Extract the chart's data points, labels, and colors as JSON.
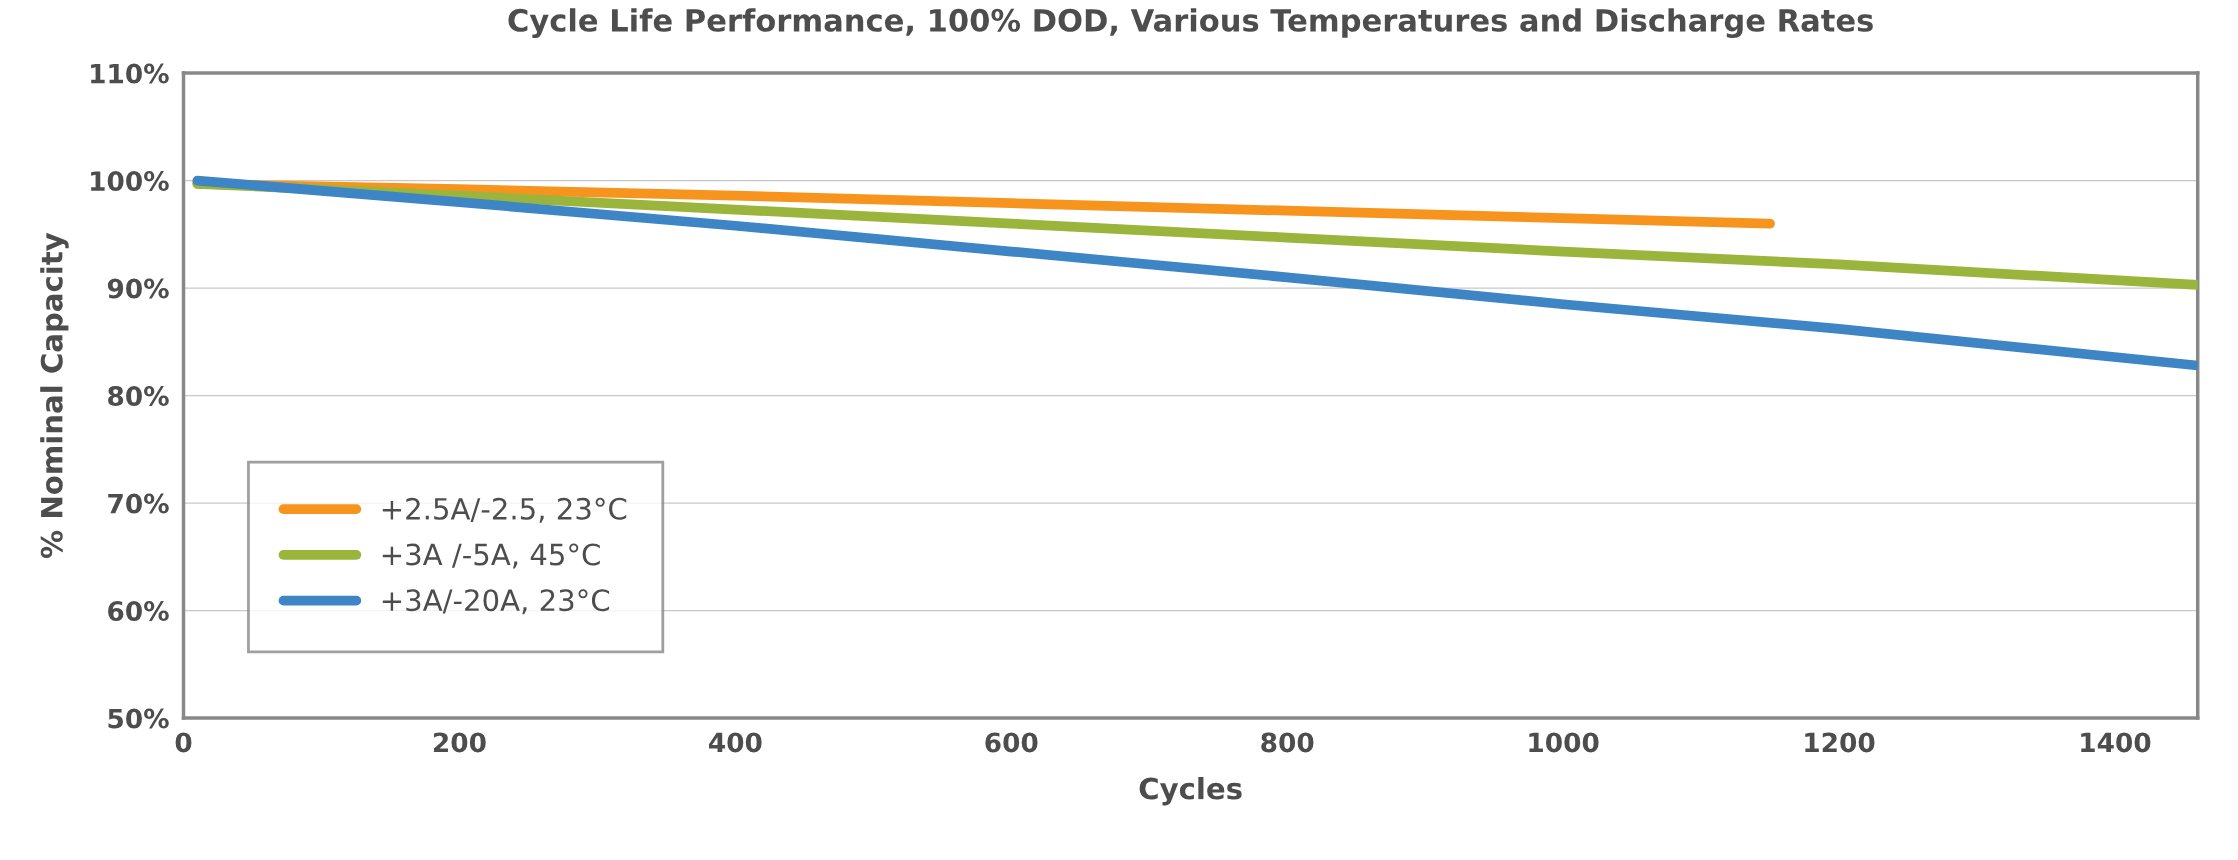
{
  "chart_data": {
    "type": "line",
    "title": "Cycle Life Performance, 100% DOD, Various Temperatures and Discharge Rates",
    "xlabel": "Cycles",
    "ylabel": "% Nominal Capacity",
    "series": [
      {
        "name": "+2.5A/-2.5, 23°C",
        "color": "#f7941d",
        "x": [
          10,
          200,
          400,
          600,
          800,
          1000,
          1150
        ],
        "values": [
          99.7,
          99.2,
          98.6,
          97.9,
          97.2,
          96.5,
          96.0
        ]
      },
      {
        "name": "+3A /-5A, 45°C",
        "color": "#9bb53c",
        "x": [
          10,
          200,
          400,
          600,
          800,
          1000,
          1200,
          1460
        ],
        "values": [
          99.7,
          98.6,
          97.3,
          96.0,
          94.7,
          93.4,
          92.2,
          90.3
        ]
      },
      {
        "name": "+3A/-20A, 23°C",
        "color": "#3e85c6",
        "x": [
          10,
          200,
          400,
          600,
          800,
          1000,
          1200,
          1460
        ],
        "values": [
          100.0,
          98.0,
          95.8,
          93.4,
          91.0,
          88.5,
          86.2,
          82.8
        ]
      }
    ],
    "xlim": [
      0,
      1460
    ],
    "xticks": [
      0,
      200,
      400,
      600,
      800,
      1000,
      1200,
      1400
    ],
    "ylim": [
      50,
      110
    ],
    "yticks": [
      {
        "value": 50,
        "label": "50%"
      },
      {
        "value": 60,
        "label": "60%"
      },
      {
        "value": 70,
        "label": "70%"
      },
      {
        "value": 80,
        "label": "80%"
      },
      {
        "value": 90,
        "label": "90%"
      },
      {
        "value": 100,
        "label": "100%"
      },
      {
        "value": 110,
        "label": "110%"
      }
    ],
    "grid": "y",
    "legend": "bottom left",
    "line_style": "solid",
    "marker": "none"
  }
}
